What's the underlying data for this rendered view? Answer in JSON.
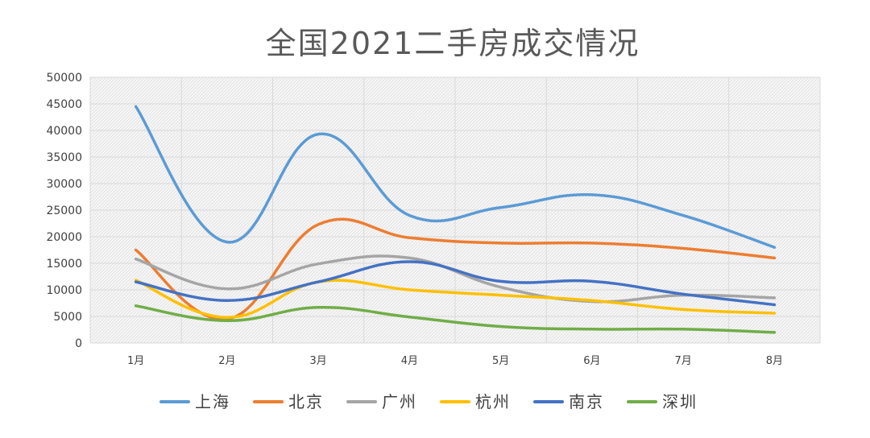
{
  "chart_data": {
    "type": "line",
    "title": "全国2021二手房成交情况",
    "xlabel": "",
    "ylabel": "",
    "ylim": [
      0,
      50000
    ],
    "yticks": [
      0,
      5000,
      10000,
      15000,
      20000,
      25000,
      30000,
      35000,
      40000,
      45000,
      50000
    ],
    "categories": [
      "1月",
      "2月",
      "3月",
      "4月",
      "5月",
      "6月",
      "7月",
      "8月"
    ],
    "grid": true,
    "smooth": true,
    "legend_position": "bottom",
    "series": [
      {
        "name": "上海",
        "color": "#5b9bd5",
        "values": [
          44500,
          19000,
          39300,
          24000,
          25500,
          27900,
          24000,
          18000
        ]
      },
      {
        "name": "北京",
        "color": "#ed7d31",
        "values": [
          17500,
          4500,
          22300,
          19800,
          18800,
          18800,
          17800,
          16000
        ]
      },
      {
        "name": "广州",
        "color": "#a5a5a5",
        "values": [
          15800,
          10200,
          14900,
          16000,
          10500,
          7800,
          9000,
          8500
        ]
      },
      {
        "name": "杭州",
        "color": "#ffc000",
        "values": [
          11800,
          4800,
          11500,
          10000,
          9000,
          8000,
          6300,
          5600
        ]
      },
      {
        "name": "南京",
        "color": "#4472c4",
        "values": [
          11500,
          8000,
          11500,
          15300,
          11600,
          11600,
          9200,
          7200
        ]
      },
      {
        "name": "深圳",
        "color": "#70ad47",
        "values": [
          7000,
          4200,
          6700,
          4900,
          3100,
          2600,
          2600,
          2000
        ]
      }
    ]
  }
}
